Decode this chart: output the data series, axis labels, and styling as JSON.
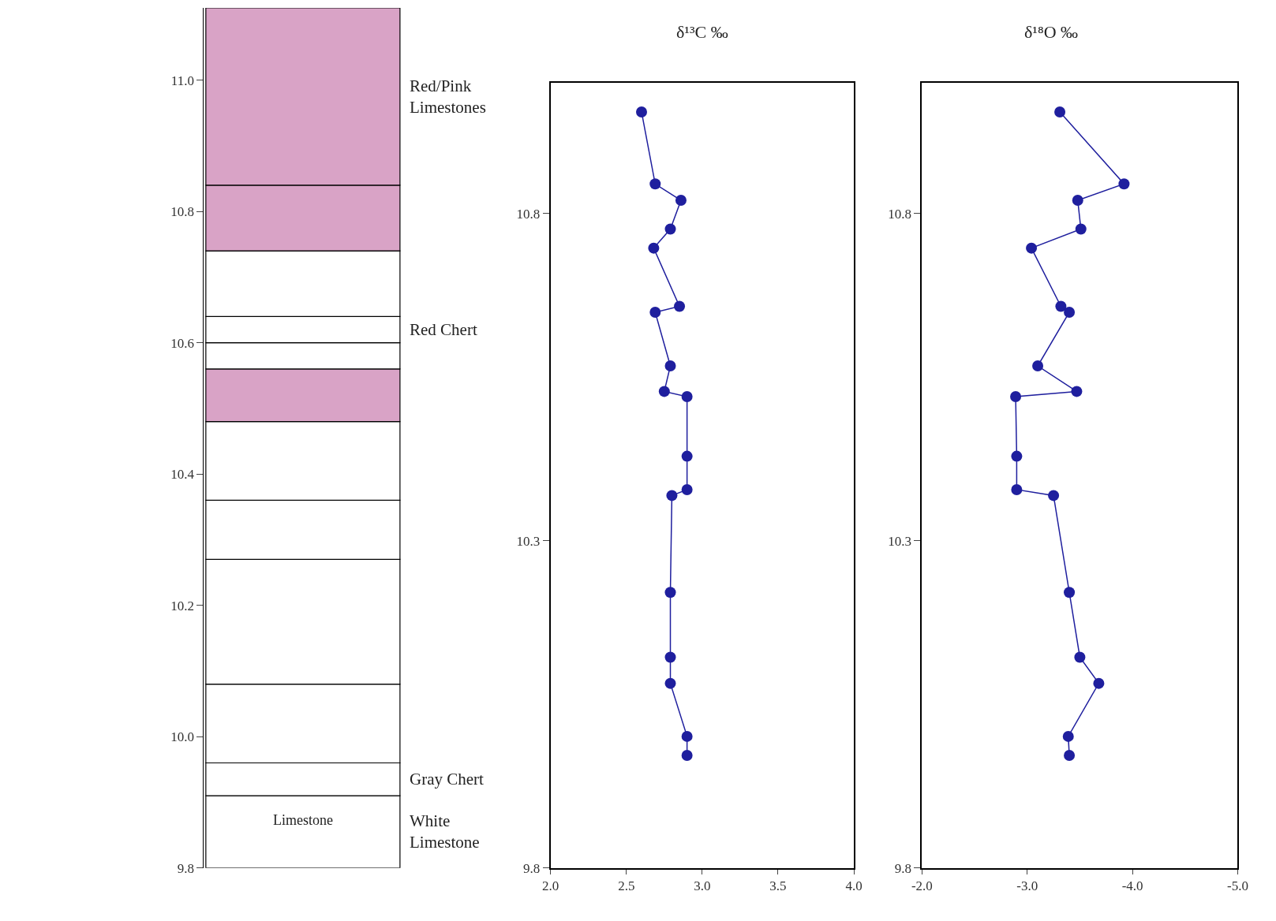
{
  "chart_data": [
    {
      "type": "bar",
      "categories": [
        null
      ],
      "ylim": [
        9.8,
        11.11
      ],
      "yticks": [
        9.8,
        {
          "value": 10.0,
          "label": "10.0"
        },
        10.2,
        10.4,
        10.6,
        10.8,
        {
          "value": 11.0,
          "label": "11.0"
        }
      ],
      "tick_labels": "y",
      "series": [
        {
          "name": "White Limestone",
          "color": "#ffffff",
          "base": [
            9.8
          ],
          "values": [
            0.11
          ]
        },
        {
          "name": "Gray Chert",
          "color": "#ffffff",
          "base": [
            9.91
          ],
          "values": [
            0.05
          ]
        },
        {
          "color": "#ffffff",
          "base": [
            9.96
          ],
          "values": [
            0.12
          ]
        },
        {
          "color": "#ffffff",
          "base": [
            10.08
          ],
          "values": [
            0.19
          ]
        },
        {
          "color": "#ffffff",
          "base": [
            10.27
          ],
          "values": [
            0.09
          ]
        },
        {
          "color": "#ffffff",
          "base": [
            10.36
          ],
          "values": [
            0.12
          ]
        },
        {
          "color": "#d9a3c6",
          "base": [
            10.48
          ],
          "values": [
            0.08
          ]
        },
        {
          "color": "#ffffff",
          "base": [
            10.56
          ],
          "values": [
            0.04
          ]
        },
        {
          "name": "Red Chert",
          "color": "#ffffff",
          "base": [
            10.6
          ],
          "values": [
            0.04
          ]
        },
        {
          "color": "#ffffff",
          "base": [
            10.64
          ],
          "values": [
            0.1
          ]
        },
        {
          "color": "#d9a3c6",
          "base": [
            10.74
          ],
          "values": [
            0.1
          ]
        },
        {
          "name": "Red/Pink Limestones",
          "color": "#d9a3c6",
          "base": [
            10.84
          ],
          "values": [
            0.27
          ]
        }
      ],
      "annotations": [
        "Limestone"
      ]
    },
    {
      "type": "line",
      "title": "δ¹³C ‰",
      "marker": "circle",
      "xlim": [
        2.0,
        4.0
      ],
      "xticks": [
        {
          "value": 2.0,
          "label": "2.0"
        },
        {
          "value": 2.5,
          "label": "2.5"
        },
        {
          "value": 3.0,
          "label": "3.0"
        },
        {
          "value": 3.5,
          "label": "3.5"
        },
        {
          "value": 4.0,
          "label": "4.0"
        }
      ],
      "ylim": [
        9.8,
        11.0
      ],
      "yticks": [
        9.8,
        10.3,
        10.8
      ],
      "series": [
        {
          "color": "#1f1f9e",
          "x": [
            2.6,
            2.69,
            2.86,
            2.79,
            2.68,
            2.85,
            2.69,
            2.79,
            2.75,
            2.9,
            2.9,
            2.9,
            2.8,
            2.79,
            2.79,
            2.79,
            2.9,
            2.9
          ],
          "values": [
            10.955,
            10.845,
            10.82,
            10.776,
            10.747,
            10.658,
            10.649,
            10.567,
            10.528,
            10.52,
            10.429,
            10.378,
            10.369,
            10.221,
            10.122,
            10.082,
            10.001,
            9.972
          ]
        }
      ]
    },
    {
      "type": "line",
      "title": "δ¹⁸O ‰",
      "marker": "circle",
      "xlim": [
        -2.0,
        -5.0
      ],
      "xticks": [
        {
          "value": -2.0,
          "label": "-2.0"
        },
        {
          "value": -3.0,
          "label": "-3.0"
        },
        {
          "value": -4.0,
          "label": "-4.0"
        },
        {
          "value": -5.0,
          "label": "-5.0"
        }
      ],
      "ylim": [
        9.8,
        11.0
      ],
      "yticks": [
        9.8,
        10.3,
        10.8
      ],
      "series": [
        {
          "color": "#1f1f9e",
          "x": [
            -3.31,
            -3.92,
            -3.48,
            -3.51,
            -3.04,
            -3.32,
            -3.4,
            -3.1,
            -3.47,
            -2.89,
            -2.9,
            -2.9,
            -3.25,
            -3.4,
            -3.5,
            -3.68,
            -3.39,
            -3.4
          ],
          "values": [
            10.955,
            10.845,
            10.82,
            10.776,
            10.747,
            10.658,
            10.649,
            10.567,
            10.528,
            10.52,
            10.429,
            10.378,
            10.369,
            10.221,
            10.122,
            10.082,
            10.001,
            9.972
          ]
        }
      ]
    }
  ]
}
